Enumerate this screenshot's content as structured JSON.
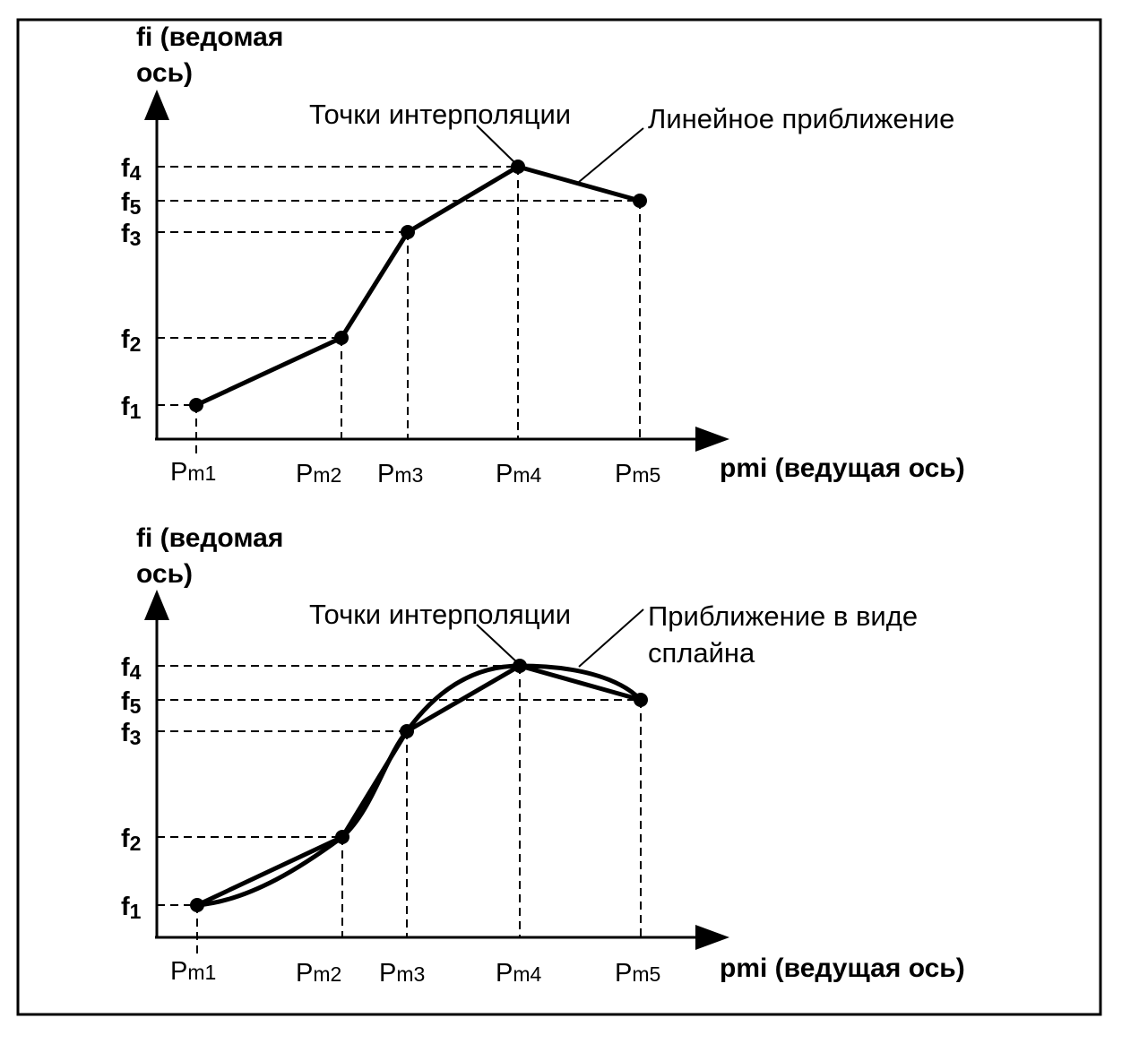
{
  "colors": {
    "ink": "#000000",
    "background": "#ffffff"
  },
  "diagrams": [
    {
      "id": "top",
      "y_axis_title": [
        "fi (ведомая",
        "ось)"
      ],
      "x_axis_title": "pmi (ведущая ось)",
      "annotations": {
        "points": "Точки интерполяции",
        "curve": [
          "Линейное приближение"
        ]
      },
      "curve_type": "linear",
      "x_labels": [
        {
          "main": "P",
          "sub": "m1"
        },
        {
          "main": "P",
          "sub": "m2"
        },
        {
          "main": "P",
          "sub": "m3"
        },
        {
          "main": "P",
          "sub": "m4"
        },
        {
          "main": "P",
          "sub": "m5"
        }
      ],
      "y_labels": [
        {
          "main": "f",
          "sub": "4"
        },
        {
          "main": "f",
          "sub": "5"
        },
        {
          "main": "f",
          "sub": "3"
        },
        {
          "main": "f",
          "sub": "2"
        },
        {
          "main": "f",
          "sub": "1"
        }
      ]
    },
    {
      "id": "bottom",
      "y_axis_title": [
        "fi (ведомая",
        "ось)"
      ],
      "x_axis_title": "pmi (ведущая ось)",
      "annotations": {
        "points": "Точки интерполяции",
        "curve": [
          "Приближение в виде",
          "сплайна"
        ]
      },
      "curve_type": "spline",
      "x_labels": [
        {
          "main": "P",
          "sub": "m1"
        },
        {
          "main": "P",
          "sub": "m2"
        },
        {
          "main": "P",
          "sub": "m3"
        },
        {
          "main": "P",
          "sub": "m4"
        },
        {
          "main": "P",
          "sub": "m5"
        }
      ],
      "y_labels": [
        {
          "main": "f",
          "sub": "4"
        },
        {
          "main": "f",
          "sub": "5"
        },
        {
          "main": "f",
          "sub": "3"
        },
        {
          "main": "f",
          "sub": "2"
        },
        {
          "main": "f",
          "sub": "1"
        }
      ]
    }
  ]
}
